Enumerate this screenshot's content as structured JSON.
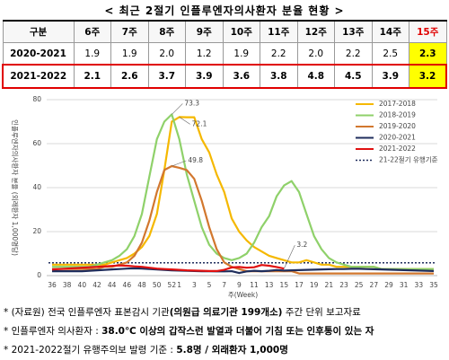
{
  "title": "< 최근 2절기 인플루엔자의사환자 분율 현황 >",
  "table": {
    "header": [
      "구분",
      "6주",
      "7주",
      "8주",
      "9주",
      "10주",
      "11주",
      "12주",
      "13주",
      "14주",
      "15주"
    ],
    "rows": [
      [
        "2020-2021",
        "1.9",
        "1.9",
        "2.0",
        "1.2",
        "1.9",
        "2.2",
        "2.0",
        "2.2",
        "2.5",
        "2.3"
      ],
      [
        "2021-2022",
        "2.1",
        "2.6",
        "3.7",
        "3.9",
        "3.6",
        "3.8",
        "4.8",
        "4.5",
        "3.9",
        "3.2"
      ]
    ]
  },
  "chart_data": {
    "type": "line",
    "y_label": "인플루엔자의사환자 분율 (외래환자 1,000명당)",
    "x_label": "주(Week)",
    "ylim": [
      0,
      80
    ],
    "yticks": [
      0,
      20,
      40,
      60,
      80
    ],
    "grid": true,
    "legend": "top-right",
    "categories": [
      "36",
      null,
      "38",
      null,
      "40",
      null,
      "42",
      null,
      "44",
      null,
      "46",
      null,
      "48",
      null,
      "50",
      null,
      "52",
      "1",
      null,
      "3",
      null,
      "5",
      null,
      "7",
      null,
      "9",
      null,
      "11",
      null,
      "13",
      null,
      "15",
      null,
      "17",
      null,
      "19",
      null,
      "21",
      null,
      "23",
      null,
      "25",
      null,
      "27",
      null,
      "29",
      null,
      "31",
      null,
      "33",
      null,
      "35"
    ],
    "series": [
      {
        "name": "2017-2018",
        "color": "#f5b800",
        "label": "max",
        "values": [
          5,
          5,
          5,
          5,
          5,
          5,
          5,
          5,
          6,
          7,
          8,
          10,
          13,
          18,
          28,
          48,
          70,
          72.1,
          72,
          72,
          62,
          56,
          46,
          38,
          26,
          20,
          16,
          13,
          11,
          9,
          8,
          7,
          6,
          6,
          7,
          6,
          5,
          5,
          4,
          4,
          4,
          4,
          4,
          4,
          3,
          3,
          3,
          3,
          3,
          3,
          3,
          3
        ]
      },
      {
        "name": "2018-2019",
        "color": "#8fd16a",
        "label": "max",
        "values": [
          4,
          4,
          4,
          4,
          4,
          4,
          5,
          6,
          7,
          9,
          12,
          18,
          28,
          45,
          62,
          70,
          73.3,
          62,
          46,
          34,
          22,
          14,
          10,
          8,
          7,
          8,
          10,
          15,
          22,
          27,
          36,
          41,
          43,
          38,
          28,
          18,
          12,
          8,
          6,
          5,
          4,
          4,
          4,
          4,
          3,
          3,
          3,
          3,
          3,
          3,
          3,
          3
        ]
      },
      {
        "name": "2019-2020",
        "color": "#d2772e",
        "label": "max",
        "values": [
          3,
          3,
          3,
          3,
          3,
          3,
          3,
          4,
          4,
          5,
          6,
          9,
          15,
          25,
          38,
          48,
          49.8,
          49,
          48,
          44,
          34,
          22,
          12,
          6,
          4,
          3,
          2,
          2,
          2,
          2,
          2,
          2,
          2,
          1,
          1,
          1,
          1,
          1,
          1,
          1,
          1,
          1,
          1,
          1,
          1,
          1,
          1,
          1,
          1,
          1,
          1,
          1
        ]
      },
      {
        "name": "2020-2021",
        "color": "#1f2d5c",
        "values": [
          2,
          2,
          2,
          2,
          2,
          2.2,
          2.4,
          2.6,
          2.8,
          3.0,
          3.2,
          3.3,
          3.2,
          3.0,
          2.8,
          2.6,
          2.4,
          2.3,
          2.2,
          2.1,
          2.0,
          2.0,
          1.9,
          1.9,
          2.0,
          1.2,
          1.9,
          2.2,
          2.0,
          2.2,
          2.5,
          2.3,
          2.4,
          2.5,
          2.6,
          2.7,
          2.8,
          2.9,
          3.0,
          3.0,
          3.1,
          3.1,
          3.0,
          2.9,
          2.8,
          2.7,
          2.6,
          2.5,
          2.4,
          2.3,
          2.2,
          2.1
        ]
      },
      {
        "name": "2021-2022",
        "color": "#e01010",
        "label": "last",
        "values": [
          2.8,
          3.0,
          3.2,
          3.4,
          3.6,
          3.8,
          4.0,
          4.2,
          4.4,
          4.6,
          4.5,
          4.2,
          4.0,
          3.6,
          3.2,
          3.0,
          2.8,
          2.6,
          2.4,
          2.3,
          2.2,
          2.1,
          2.1,
          2.6,
          3.7,
          3.9,
          3.6,
          3.8,
          4.8,
          4.5,
          3.9,
          3.2,
          null,
          null,
          null,
          null,
          null,
          null,
          null,
          null,
          null,
          null,
          null,
          null,
          null,
          null,
          null,
          null,
          null,
          null,
          null,
          null
        ]
      }
    ],
    "threshold": {
      "name": "21-22절기 유행기준",
      "value": 5.8,
      "color": "#1f2d5c"
    }
  },
  "notes": [
    [
      {
        "text": "* (자료원) 전국 인플루엔자 표본감시 기관"
      },
      {
        "text": "(의원급 의료기관 199개소)",
        "bold": true
      },
      {
        "text": " 주간 단위 보고자료"
      }
    ],
    [
      {
        "text": "* 인플루엔자 의사환자 : "
      },
      {
        "text": "38.0℃ 이상의 갑작스런 발열과 더불어 기침 또는 인후통이 있는 자",
        "bold": true
      }
    ],
    [
      {
        "text": "* 2021-2022절기 유행주의보 발령 기준 : "
      },
      {
        "text": "5.8명 / 외래환자 1,000명",
        "bold": true
      }
    ]
  ]
}
